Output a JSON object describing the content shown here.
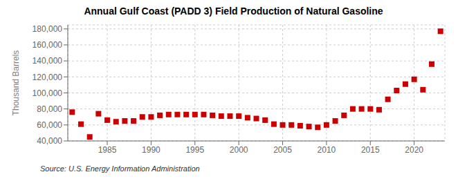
{
  "chart_data": {
    "type": "scatter",
    "title": "Annual Gulf Coast (PADD 3) Field Production of Natural Gasoline",
    "ylabel": "Thousand Barrels",
    "annotations": [
      "Source: U.S. Energy Information Administration"
    ],
    "color": "#cc0000",
    "marker": "square",
    "grid": true,
    "xlim": [
      1980.5,
      2023.5
    ],
    "xticks": [
      1985,
      1990,
      1995,
      2000,
      2005,
      2010,
      2015,
      2020
    ],
    "ylim": [
      40000,
      185000
    ],
    "yticks": [
      {
        "value": 40000,
        "label": "40,000"
      },
      {
        "value": 60000,
        "label": "60,000"
      },
      {
        "value": 80000,
        "label": "80,000"
      },
      {
        "value": 100000,
        "label": "100,000"
      },
      {
        "value": 120000,
        "label": "120,000"
      },
      {
        "value": 140000,
        "label": "140,000"
      },
      {
        "value": 160000,
        "label": "160,000"
      },
      {
        "value": 180000,
        "label": "180,000"
      }
    ],
    "x": [
      1981,
      1982,
      1983,
      1984,
      1985,
      1986,
      1987,
      1988,
      1989,
      1990,
      1991,
      1992,
      1993,
      1994,
      1995,
      1996,
      1997,
      1998,
      1999,
      2000,
      2001,
      2002,
      2003,
      2004,
      2005,
      2006,
      2007,
      2008,
      2009,
      2010,
      2011,
      2012,
      2013,
      2014,
      2015,
      2016,
      2017,
      2018,
      2019,
      2020,
      2021,
      2022,
      2023
    ],
    "values": [
      76000,
      61000,
      45000,
      74000,
      66000,
      64000,
      65000,
      65000,
      70000,
      70000,
      72000,
      73000,
      73000,
      73000,
      73000,
      73000,
      72000,
      71000,
      71000,
      71000,
      69000,
      68000,
      66000,
      61000,
      60000,
      60000,
      59000,
      58000,
      57000,
      60000,
      65000,
      72000,
      80000,
      80000,
      80000,
      79000,
      92000,
      103000,
      111000,
      117000,
      104000,
      136000,
      177000
    ]
  }
}
